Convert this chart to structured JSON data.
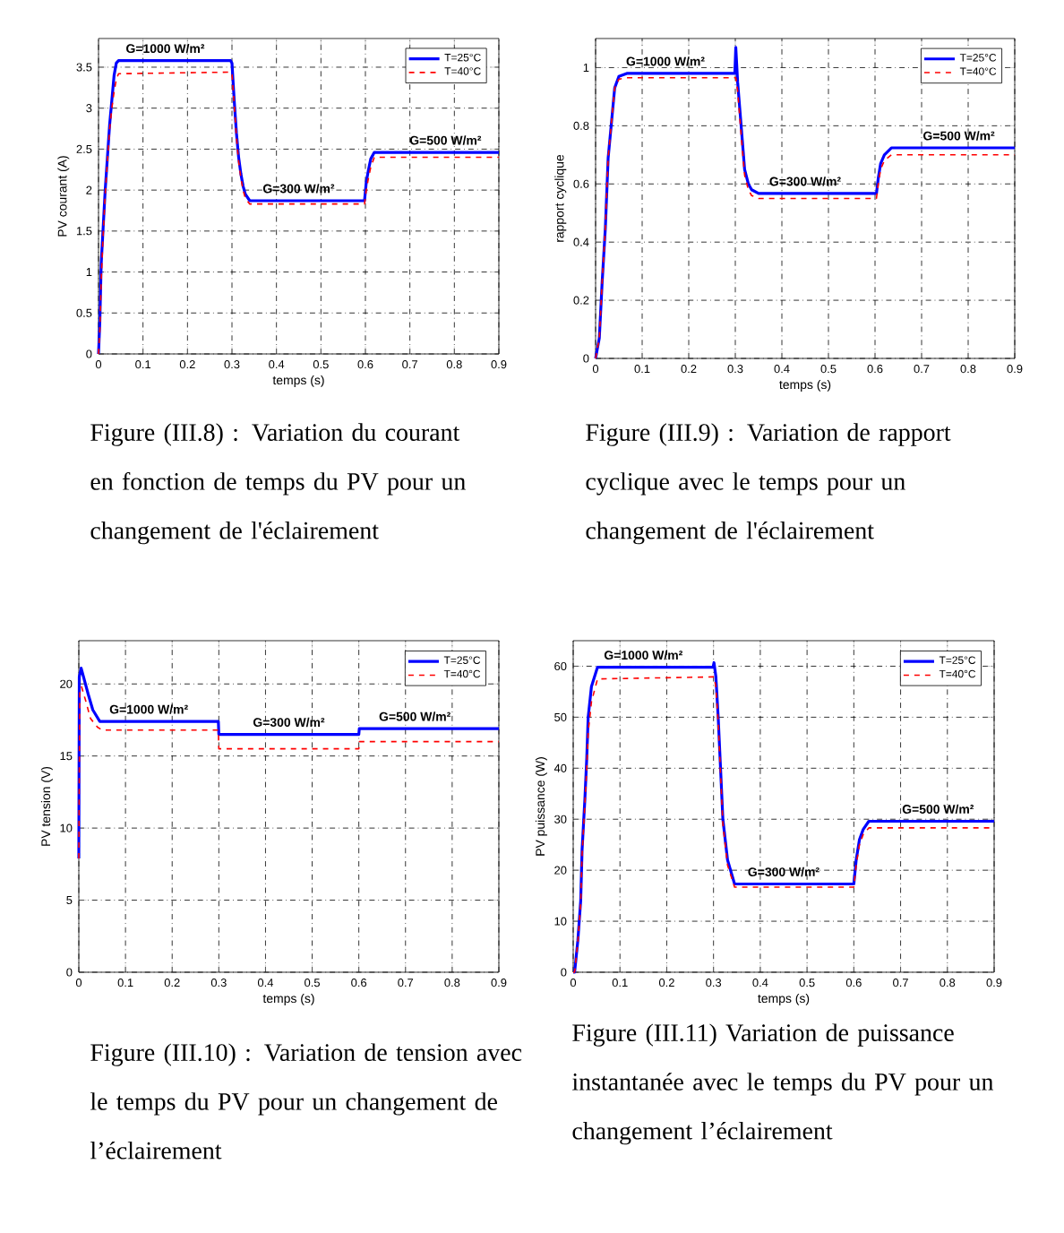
{
  "chart_data": [
    {
      "type": "line",
      "xlabel": "temps (s)",
      "ylabel": "PV courant (A)",
      "xlim": [
        0,
        0.9
      ],
      "ylim": [
        0,
        3.85
      ],
      "xticks": [
        0,
        0.1,
        0.2,
        0.3,
        0.4,
        0.5,
        0.6,
        0.7,
        0.8,
        0.9
      ],
      "yticks": [
        0,
        0.5,
        1,
        1.5,
        2,
        2.5,
        3,
        3.5
      ],
      "grid": true,
      "legend": "top right",
      "series": [
        {
          "name": "T=25°C",
          "color": "#0000ff",
          "line_style": "solid",
          "x": [
            0,
            0.003,
            0.006,
            0.01,
            0.015,
            0.02,
            0.025,
            0.03,
            0.035,
            0.04,
            0.045,
            0.297,
            0.3,
            0.305,
            0.31,
            0.315,
            0.32,
            0.325,
            0.33,
            0.34,
            0.598,
            0.602,
            0.607,
            0.612,
            0.62,
            0.9
          ],
          "values": [
            0,
            0.4,
            1.1,
            1.5,
            2.0,
            2.4,
            2.8,
            3.1,
            3.4,
            3.55,
            3.58,
            3.58,
            3.55,
            3.1,
            2.7,
            2.4,
            2.2,
            2.05,
            1.95,
            1.87,
            1.87,
            2.1,
            2.25,
            2.38,
            2.46,
            2.46
          ]
        },
        {
          "name": "T=40°C",
          "color": "#ff0000",
          "line_style": "dashed",
          "x": [
            0,
            0.003,
            0.006,
            0.01,
            0.015,
            0.02,
            0.025,
            0.03,
            0.035,
            0.04,
            0.045,
            0.297,
            0.3,
            0.305,
            0.31,
            0.315,
            0.32,
            0.325,
            0.33,
            0.34,
            0.598,
            0.602,
            0.607,
            0.612,
            0.62,
            0.9
          ],
          "values": [
            0,
            0.3,
            0.9,
            1.4,
            1.95,
            2.35,
            2.75,
            3.0,
            3.2,
            3.35,
            3.42,
            3.44,
            3.42,
            3.05,
            2.65,
            2.35,
            2.15,
            2.0,
            1.9,
            1.83,
            1.83,
            2.0,
            2.15,
            2.28,
            2.4,
            2.4
          ]
        }
      ],
      "annotations": [
        {
          "text": "G=1000 W/m²",
          "x": 0.15,
          "y": 3.58
        },
        {
          "text": "G=300 W/m²",
          "x": 0.45,
          "y": 1.87
        },
        {
          "text": "G=500 W/m²",
          "x": 0.78,
          "y": 2.46
        },
        "Figure (III.8) : Variation du courant en fonction de temps du PV pour un changement  de l'éclairement"
      ]
    },
    {
      "type": "line",
      "xlabel": "temps (s)",
      "ylabel": "rapport cyclique",
      "xlim": [
        0,
        0.9
      ],
      "ylim": [
        0,
        1.1
      ],
      "xticks": [
        0,
        0.1,
        0.2,
        0.3,
        0.4,
        0.5,
        0.6,
        0.7,
        0.8,
        0.9
      ],
      "yticks": [
        0,
        0.2,
        0.4,
        0.6,
        0.8,
        1
      ],
      "grid": true,
      "legend": "top right",
      "series": [
        {
          "name": "T=25°C",
          "color": "#0000ff",
          "line_style": "solid",
          "x": [
            0,
            0.008,
            0.014,
            0.021,
            0.027,
            0.034,
            0.041,
            0.05,
            0.067,
            0.299,
            0.301,
            0.305,
            0.31,
            0.315,
            0.32,
            0.328,
            0.335,
            0.35,
            0.603,
            0.607,
            0.612,
            0.62,
            0.635,
            0.9
          ],
          "values": [
            0,
            0.07,
            0.26,
            0.45,
            0.69,
            0.81,
            0.93,
            0.97,
            0.98,
            0.98,
            1.07,
            0.95,
            0.85,
            0.75,
            0.65,
            0.6,
            0.58,
            0.567,
            0.567,
            0.62,
            0.67,
            0.7,
            0.724,
            0.724
          ]
        },
        {
          "name": "T=40°C",
          "color": "#ff0000",
          "line_style": "dashed",
          "x": [
            0,
            0.008,
            0.014,
            0.021,
            0.027,
            0.034,
            0.041,
            0.05,
            0.067,
            0.299,
            0.301,
            0.305,
            0.31,
            0.315,
            0.32,
            0.328,
            0.335,
            0.35,
            0.603,
            0.607,
            0.612,
            0.62,
            0.635,
            0.9
          ],
          "values": [
            0,
            0.07,
            0.26,
            0.45,
            0.69,
            0.81,
            0.93,
            0.96,
            0.965,
            0.965,
            0.965,
            0.92,
            0.82,
            0.72,
            0.63,
            0.58,
            0.56,
            0.55,
            0.55,
            0.6,
            0.65,
            0.68,
            0.7,
            0.7
          ]
        }
      ],
      "annotations": [
        {
          "text": "G=1000 W/m²",
          "x": 0.15,
          "y": 0.98
        },
        {
          "text": "G=300 W/m²",
          "x": 0.45,
          "y": 0.567
        },
        {
          "text": "G=500 W/m²",
          "x": 0.78,
          "y": 0.724
        },
        "Figure (III.9) : Variation de rapport cyclique avec le temps pour un changement de l'éclairement"
      ]
    },
    {
      "type": "line",
      "xlabel": "temps (s)",
      "ylabel": "PV tension (V)",
      "xlim": [
        0,
        0.9
      ],
      "ylim": [
        0,
        23
      ],
      "xticks": [
        0,
        0.1,
        0.2,
        0.3,
        0.4,
        0.5,
        0.6,
        0.7,
        0.8,
        0.9
      ],
      "yticks": [
        0,
        5,
        10,
        15,
        20
      ],
      "grid": true,
      "legend": "top right",
      "series": [
        {
          "name": "T=25°C",
          "color": "#0000ff",
          "line_style": "solid",
          "x": [
            0,
            0.001,
            0.005,
            0.01,
            0.02,
            0.03,
            0.045,
            0.299,
            0.3,
            0.6,
            0.601,
            0.9
          ],
          "values": [
            7.9,
            20.5,
            21.1,
            20.5,
            19.3,
            18.2,
            17.4,
            17.4,
            16.5,
            16.5,
            16.9,
            16.9
          ]
        },
        {
          "name": "T=40°C",
          "color": "#ff0000",
          "line_style": "dashed",
          "x": [
            0,
            0.002,
            0.006,
            0.015,
            0.025,
            0.04,
            0.05,
            0.299,
            0.3,
            0.6,
            0.601,
            0.9
          ],
          "values": [
            7.9,
            19.5,
            19.8,
            18.8,
            17.6,
            17.0,
            16.8,
            16.8,
            15.5,
            15.5,
            16.0,
            16.0
          ]
        }
      ],
      "annotations": [
        {
          "text": "G=1000 W/m²",
          "x": 0.15,
          "y": 17.4
        },
        {
          "text": "G=300 W/m²",
          "x": 0.45,
          "y": 16.5
        },
        {
          "text": "G=500 W/m²",
          "x": 0.72,
          "y": 16.9
        },
        "Figure (III.10) : Variation de tension avec le temps  du PV  pour un changement  de l’éclairement"
      ]
    },
    {
      "type": "line",
      "xlabel": "temps (s)",
      "ylabel": "PV puissance (W)",
      "xlim": [
        0,
        0.9
      ],
      "ylim": [
        0,
        65
      ],
      "xticks": [
        0,
        0.1,
        0.2,
        0.3,
        0.4,
        0.5,
        0.6,
        0.7,
        0.8,
        0.9
      ],
      "yticks": [
        0,
        10,
        20,
        30,
        40,
        50,
        60
      ],
      "grid": true,
      "legend": "top right",
      "series": [
        {
          "name": "T=25°C",
          "color": "#0000ff",
          "line_style": "solid",
          "x": [
            0,
            0.003,
            0.01,
            0.016,
            0.019,
            0.025,
            0.029,
            0.032,
            0.039,
            0.052,
            0.299,
            0.301,
            0.305,
            0.31,
            0.315,
            0.32,
            0.33,
            0.345,
            0.6,
            0.605,
            0.612,
            0.62,
            0.632,
            0.9
          ],
          "values": [
            0,
            0,
            6.3,
            14,
            24,
            34,
            42,
            50,
            56,
            59.8,
            59.8,
            60.7,
            58,
            50,
            40,
            30,
            22,
            17.3,
            17.3,
            22,
            26,
            28,
            29.6,
            29.6
          ]
        },
        {
          "name": "T=40°C",
          "color": "#ff0000",
          "line_style": "dashed",
          "x": [
            0,
            0.003,
            0.01,
            0.016,
            0.019,
            0.025,
            0.029,
            0.032,
            0.039,
            0.052,
            0.299,
            0.301,
            0.305,
            0.31,
            0.315,
            0.32,
            0.33,
            0.345,
            0.6,
            0.605,
            0.612,
            0.62,
            0.632,
            0.9
          ],
          "values": [
            0,
            0,
            6,
            13.5,
            23,
            33,
            40,
            47,
            53,
            57.5,
            57.9,
            57.9,
            56,
            49,
            39,
            29,
            21,
            16.7,
            16.7,
            21,
            25,
            27,
            28.3,
            28.3
          ]
        }
      ],
      "annotations": [
        {
          "text": "G=1000 W/m²",
          "x": 0.15,
          "y": 59.8
        },
        {
          "text": "G=300 W/m²",
          "x": 0.45,
          "y": 17.3
        },
        {
          "text": "G=500 W/m²",
          "x": 0.78,
          "y": 29.6
        },
        "Figure (III.11) Variation de puissance instantanée avec le temps du PV pour un changement l’éclairement"
      ]
    }
  ]
}
